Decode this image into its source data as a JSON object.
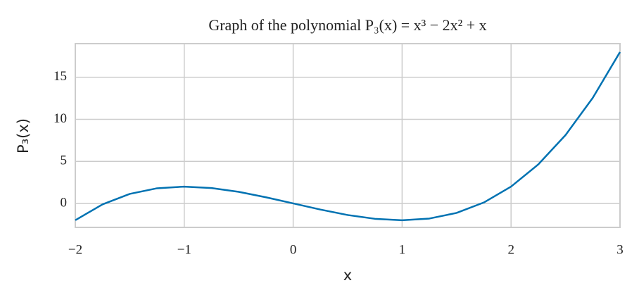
{
  "chart_data": {
    "type": "line",
    "title": "Graph of the polynomial P₃(x) = x³ − 2x² + x",
    "xlabel": "x",
    "ylabel": "P₃(x)",
    "x": [
      -2,
      -1.75,
      -1.5,
      -1.25,
      -1,
      -0.75,
      -0.5,
      -0.25,
      0,
      0.25,
      0.5,
      0.75,
      1,
      1.25,
      1.5,
      1.75,
      2,
      2.25,
      2.5,
      2.75,
      3
    ],
    "series": [
      {
        "color": "#0072b2",
        "values": [
          -2,
          -0.11,
          1.13,
          1.8,
          2,
          1.83,
          1.38,
          0.73,
          0,
          -0.73,
          -1.38,
          -1.83,
          -2,
          -1.8,
          -1.13,
          0.11,
          2,
          4.64,
          8.13,
          12.55,
          18
        ]
      }
    ],
    "xlim": [
      -2,
      3
    ],
    "ylim": [
      -2.85,
      19
    ],
    "xticks": [
      {
        "value": -2,
        "label": "−2"
      },
      {
        "value": -1,
        "label": "−1"
      },
      0,
      1,
      2,
      3
    ],
    "yticks": [
      0,
      5,
      10,
      15
    ],
    "grid": true
  }
}
